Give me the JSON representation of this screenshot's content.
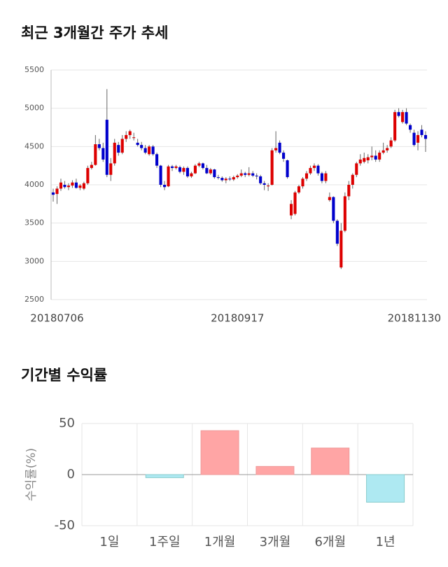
{
  "chart_data": [
    {
      "type": "candlestick",
      "title": "최근 3개월간 주가 추세",
      "categories": [
        null,
        "20180706",
        null,
        null,
        null,
        null,
        null,
        null,
        null,
        null,
        null,
        null,
        null,
        null,
        null,
        null,
        null,
        null,
        null,
        null,
        null,
        null,
        null,
        null,
        null,
        null,
        null,
        null,
        null,
        null,
        null,
        null,
        null,
        null,
        null,
        null,
        null,
        null,
        null,
        null,
        null,
        null,
        null,
        null,
        null,
        null,
        null,
        null,
        "20180917",
        null,
        null,
        null,
        null,
        null,
        null,
        null,
        null,
        null,
        null,
        null,
        null,
        null,
        null,
        null,
        null,
        null,
        null,
        null,
        null,
        null,
        null,
        null,
        null,
        null,
        null,
        null,
        null,
        null,
        null,
        null,
        null,
        null,
        null,
        null,
        null,
        null,
        null,
        null,
        null,
        null,
        null,
        null,
        null,
        null,
        null,
        null,
        null,
        "20181130"
      ],
      "ohlc": [
        [
          3900,
          3950,
          3780,
          3870
        ],
        [
          3880,
          3980,
          3750,
          3950
        ],
        [
          3950,
          4080,
          3920,
          4030
        ],
        [
          4000,
          4050,
          3950,
          3970
        ],
        [
          3970,
          4020,
          3930,
          3990
        ],
        [
          3990,
          4060,
          3960,
          4030
        ],
        [
          4030,
          4080,
          3950,
          3960
        ],
        [
          3960,
          4010,
          3930,
          3990
        ],
        [
          3950,
          4040,
          3930,
          4020
        ],
        [
          4020,
          4250,
          4000,
          4220
        ],
        [
          4220,
          4300,
          4200,
          4260
        ],
        [
          4260,
          4650,
          4250,
          4530
        ],
        [
          4530,
          4600,
          4450,
          4480
        ],
        [
          4480,
          4550,
          4300,
          4330
        ],
        [
          4850,
          5250,
          4100,
          4130
        ],
        [
          4130,
          4350,
          4050,
          4280
        ],
        [
          4280,
          4600,
          4250,
          4550
        ],
        [
          4520,
          4560,
          4380,
          4420
        ],
        [
          4420,
          4650,
          4400,
          4600
        ],
        [
          4600,
          4700,
          4560,
          4650
        ],
        [
          4650,
          4720,
          4600,
          4700
        ],
        [
          4620,
          4680,
          4580,
          4620
        ],
        [
          4550,
          4600,
          4500,
          4520
        ],
        [
          4520,
          4560,
          4450,
          4480
        ],
        [
          4480,
          4520,
          4400,
          4420
        ],
        [
          4400,
          4520,
          4380,
          4500
        ],
        [
          4500,
          4520,
          4380,
          4400
        ],
        [
          4400,
          4420,
          4220,
          4250
        ],
        [
          4250,
          4260,
          3970,
          4000
        ],
        [
          4000,
          4050,
          3930,
          3970
        ],
        [
          3980,
          4260,
          3970,
          4240
        ],
        [
          4240,
          4260,
          4180,
          4220
        ],
        [
          4220,
          4260,
          4200,
          4240
        ],
        [
          4230,
          4250,
          4150,
          4170
        ],
        [
          4170,
          4240,
          4130,
          4220
        ],
        [
          4220,
          4240,
          4090,
          4110
        ],
        [
          4110,
          4170,
          4090,
          4150
        ],
        [
          4150,
          4270,
          4140,
          4250
        ],
        [
          4250,
          4300,
          4230,
          4280
        ],
        [
          4280,
          4290,
          4200,
          4220
        ],
        [
          4220,
          4260,
          4140,
          4150
        ],
        [
          4150,
          4220,
          4130,
          4200
        ],
        [
          4200,
          4210,
          4080,
          4100
        ],
        [
          4100,
          4130,
          4070,
          4090
        ],
        [
          4090,
          4110,
          4040,
          4060
        ],
        [
          4060,
          4100,
          4020,
          4080
        ],
        [
          4080,
          4110,
          4050,
          4070
        ],
        [
          4070,
          4120,
          4050,
          4100
        ],
        [
          4100,
          4140,
          4080,
          4120
        ],
        [
          4120,
          4200,
          4100,
          4150
        ],
        [
          4150,
          4170,
          4100,
          4130
        ],
        [
          4130,
          4230,
          4110,
          4150
        ],
        [
          4150,
          4180,
          4100,
          4120
        ],
        [
          4120,
          4150,
          4070,
          4110
        ],
        [
          4110,
          4130,
          4000,
          4020
        ],
        [
          4020,
          4050,
          3930,
          4000
        ],
        [
          3980,
          4020,
          3920,
          3990
        ],
        [
          4000,
          4480,
          3990,
          4450
        ],
        [
          4450,
          4700,
          4420,
          4480
        ],
        [
          4550,
          4580,
          4400,
          4420
        ],
        [
          4420,
          4450,
          4300,
          4340
        ],
        [
          4320,
          4330,
          4080,
          4100
        ],
        [
          3600,
          3800,
          3550,
          3750
        ],
        [
          3620,
          3920,
          3600,
          3900
        ],
        [
          3900,
          4000,
          3880,
          3980
        ],
        [
          3980,
          4100,
          3950,
          4080
        ],
        [
          4080,
          4180,
          4050,
          4150
        ],
        [
          4150,
          4250,
          4130,
          4220
        ],
        [
          4220,
          4280,
          4180,
          4250
        ],
        [
          4250,
          4270,
          4120,
          4150
        ],
        [
          4150,
          4170,
          4020,
          4050
        ],
        [
          4050,
          4180,
          4020,
          4150
        ],
        [
          3800,
          3900,
          3780,
          3840
        ],
        [
          3840,
          3850,
          3500,
          3530
        ],
        [
          3530,
          3550,
          3200,
          3230
        ],
        [
          2920,
          3500,
          2900,
          3400
        ],
        [
          3400,
          3900,
          3380,
          3850
        ],
        [
          3850,
          4050,
          3800,
          4000
        ],
        [
          4000,
          4150,
          3950,
          4130
        ],
        [
          4130,
          4300,
          4100,
          4280
        ],
        [
          4280,
          4400,
          4250,
          4330
        ],
        [
          4300,
          4420,
          4280,
          4350
        ],
        [
          4320,
          4400,
          4280,
          4360
        ],
        [
          4360,
          4500,
          4320,
          4380
        ],
        [
          4380,
          4450,
          4300,
          4330
        ],
        [
          4330,
          4450,
          4300,
          4420
        ],
        [
          4420,
          4550,
          4400,
          4450
        ],
        [
          4450,
          4520,
          4420,
          4480
        ],
        [
          4500,
          4620,
          4480,
          4580
        ],
        [
          4580,
          4980,
          4560,
          4950
        ],
        [
          4950,
          5000,
          4880,
          4900
        ],
        [
          4820,
          4980,
          4800,
          4950
        ],
        [
          4950,
          5000,
          4780,
          4800
        ],
        [
          4780,
          4800,
          4680,
          4720
        ],
        [
          4680,
          4720,
          4500,
          4520
        ],
        [
          4550,
          4700,
          4450,
          4650
        ],
        [
          4720,
          4780,
          4620,
          4650
        ],
        [
          4650,
          4700,
          4430,
          4600
        ]
      ],
      "up_color": "#dd0000",
      "down_color": "#0000cc",
      "ylim": [
        2500,
        5500
      ],
      "yticks": [
        2500,
        3000,
        3500,
        4000,
        4500,
        5000,
        5500
      ],
      "grid": true
    },
    {
      "type": "bar",
      "title": "기간별 수익률",
      "y_label": "수익률(%)",
      "categories": [
        "1일",
        "1주일",
        "1개월",
        "3개월",
        "6개월",
        "1년"
      ],
      "values": [
        0,
        -3,
        43,
        8,
        26,
        -27
      ],
      "positive_color": "#ffa5a5",
      "negative_color": "#aee9f2",
      "ylim": [
        -50,
        50
      ],
      "yticks": [
        -50,
        0,
        50
      ],
      "grid": true
    }
  ]
}
